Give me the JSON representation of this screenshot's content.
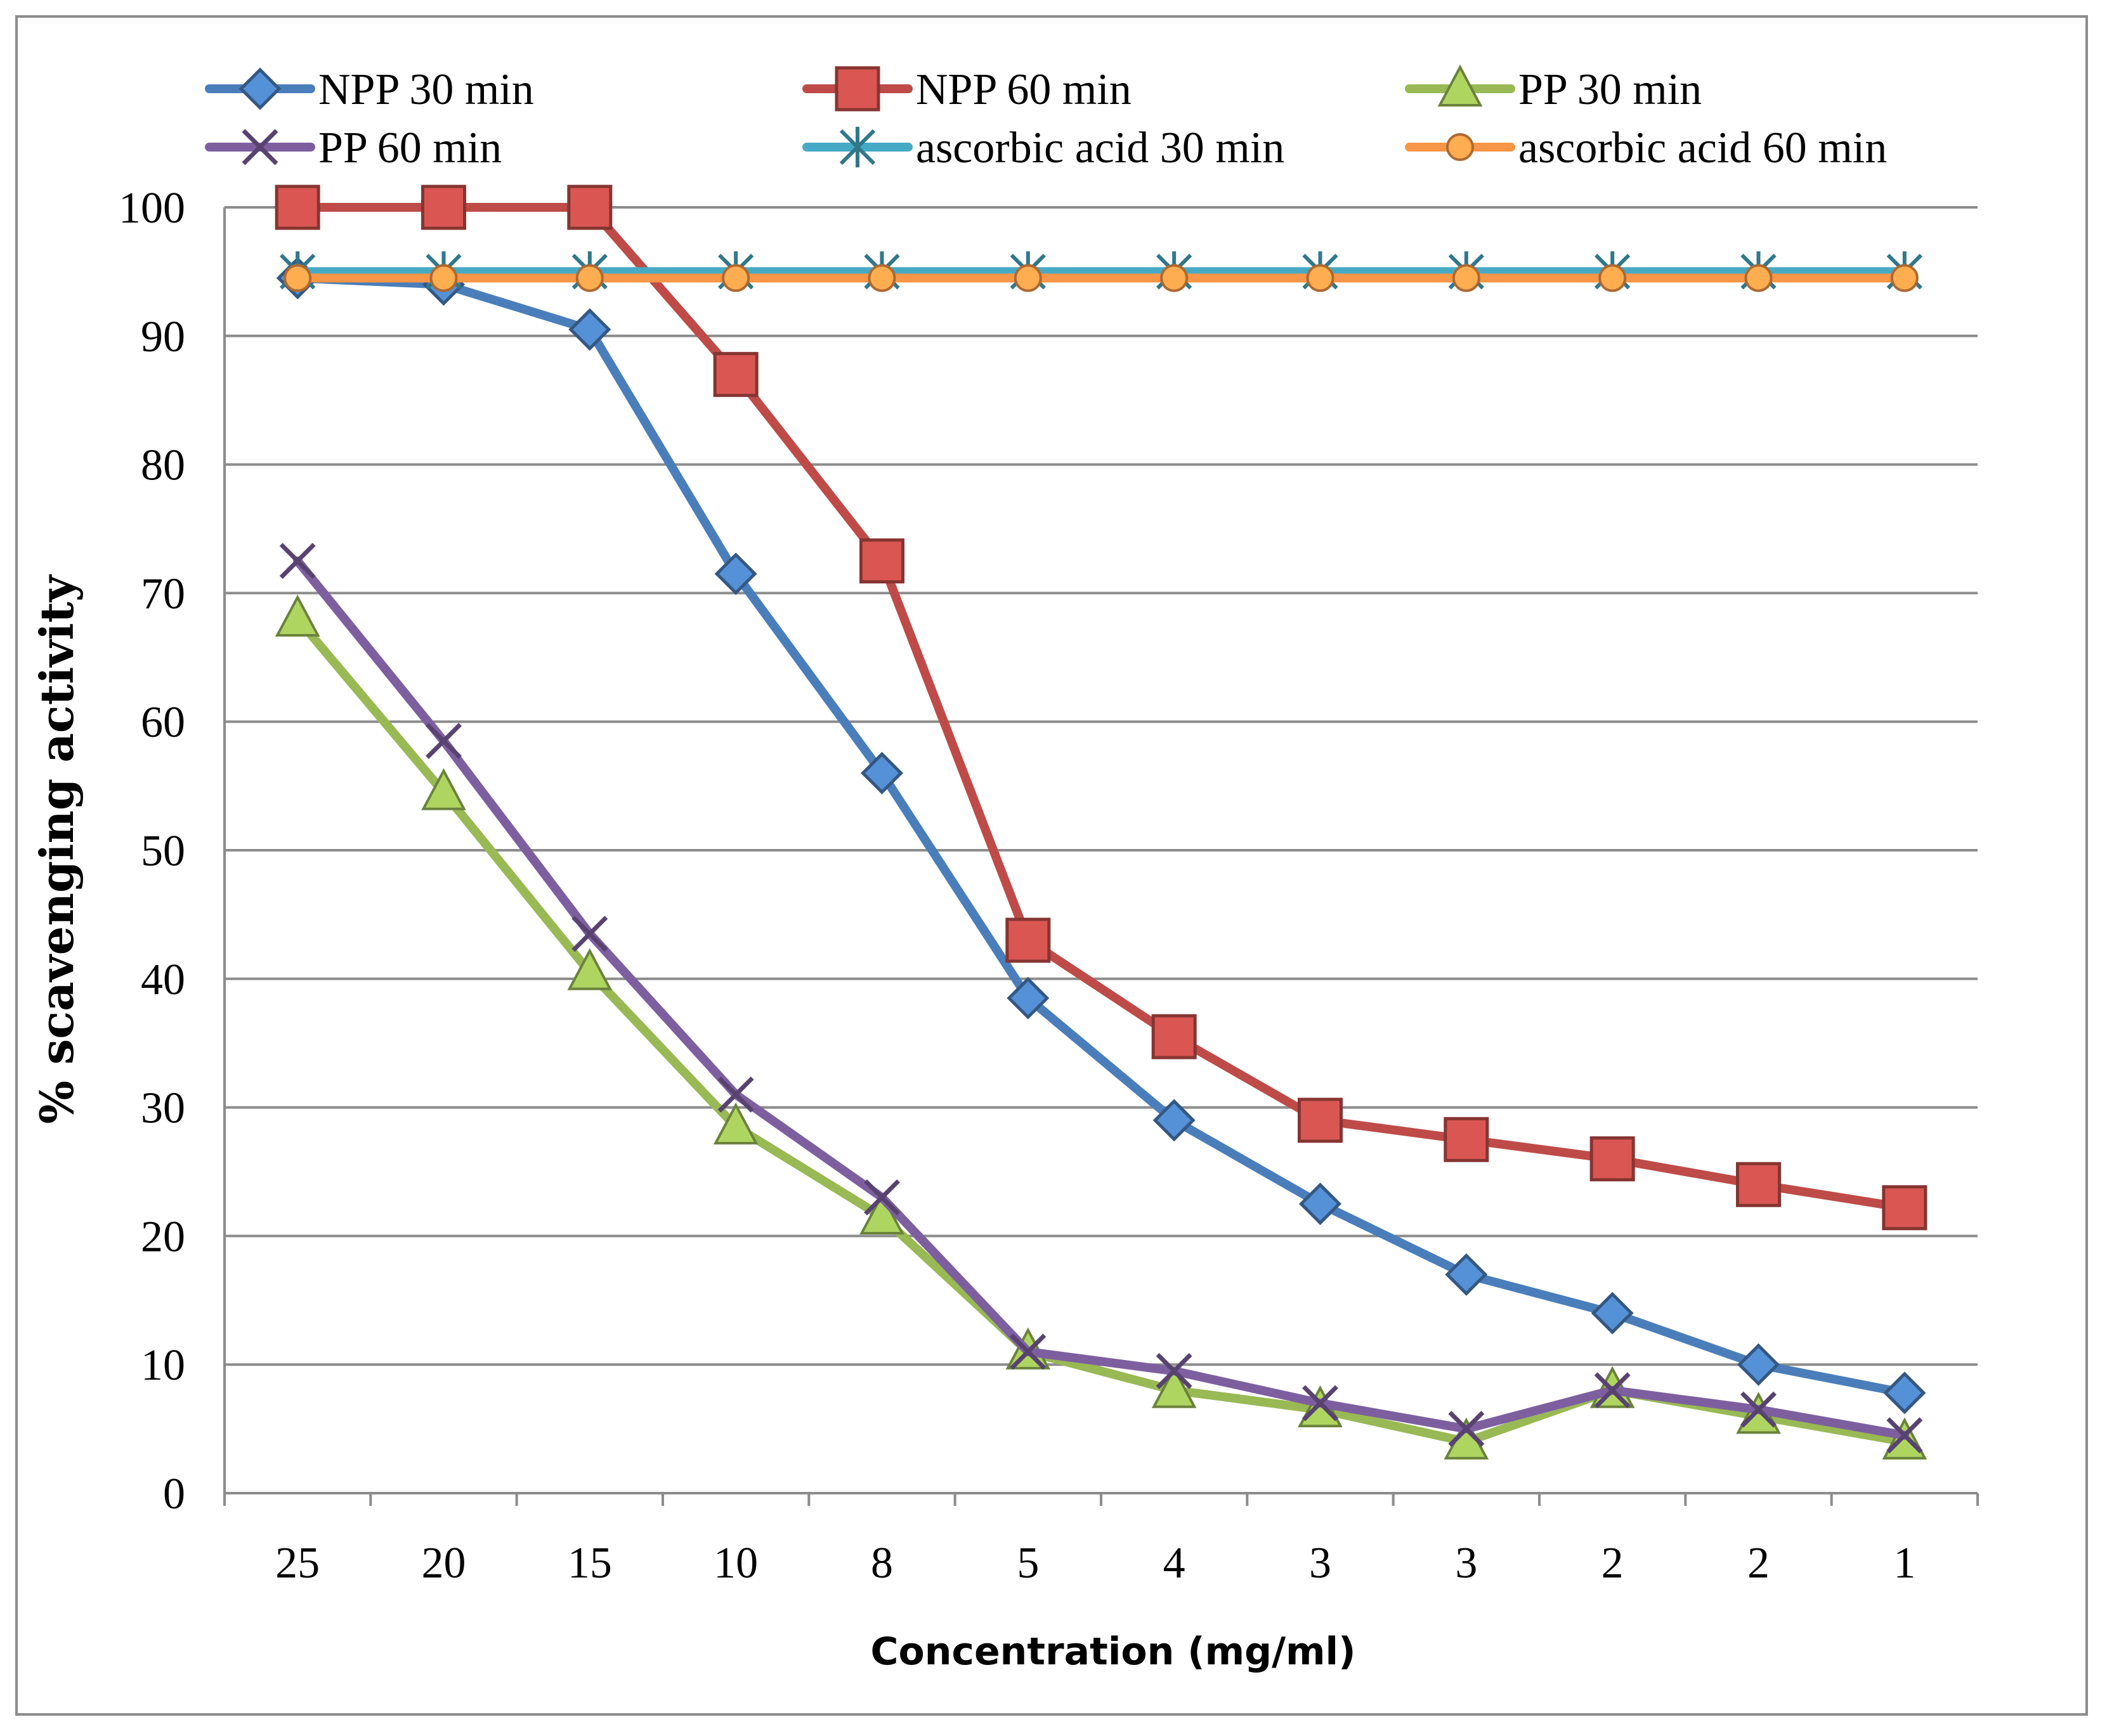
{
  "chart_data": {
    "type": "line",
    "title": "",
    "xlabel": "Concentration (mg/ml)",
    "ylabel": "% scavenging activity",
    "categories": [
      "25",
      "20",
      "15",
      "10",
      "8",
      "5",
      "4",
      "3",
      "3",
      "2",
      "2",
      "1"
    ],
    "ylim": [
      0,
      100
    ],
    "yticks": [
      0,
      10,
      20,
      30,
      40,
      50,
      60,
      70,
      80,
      90,
      100
    ],
    "grid": true,
    "legend_position": "top",
    "series": [
      {
        "name": "NPP 30 min",
        "color": "#4a7ebb",
        "marker": "diamond",
        "values": [
          94.5,
          94,
          90.5,
          71.5,
          56,
          38.5,
          29,
          22.5,
          17,
          14,
          10,
          7.8
        ]
      },
      {
        "name": "NPP 60 min",
        "color": "#be4b48",
        "marker": "square",
        "values": [
          100,
          100,
          100,
          87,
          72.5,
          43,
          35.5,
          29,
          27.5,
          26,
          24,
          22.2
        ]
      },
      {
        "name": "PP 30 min",
        "color": "#98b954",
        "marker": "triangle",
        "values": [
          68,
          54.5,
          40.5,
          28.5,
          21.5,
          11,
          8,
          6.5,
          4,
          8,
          6,
          4
        ]
      },
      {
        "name": "PP 60 min",
        "color": "#7d5fa0",
        "marker": "cross",
        "values": [
          72.5,
          58.5,
          43.5,
          31,
          23,
          11,
          9.5,
          7,
          5,
          8,
          6.5,
          4.5
        ]
      },
      {
        "name": "ascorbic acid 30 min",
        "color": "#46aac5",
        "marker": "star",
        "values": [
          95,
          95,
          95,
          95,
          95,
          95,
          95,
          95,
          95,
          95,
          95,
          95
        ]
      },
      {
        "name": "ascorbic acid 60 min",
        "color": "#f79646",
        "marker": "circle",
        "values": [
          94.5,
          94.5,
          94.5,
          94.5,
          94.5,
          94.5,
          94.5,
          94.5,
          94.5,
          94.5,
          94.5,
          94.5
        ]
      }
    ]
  }
}
